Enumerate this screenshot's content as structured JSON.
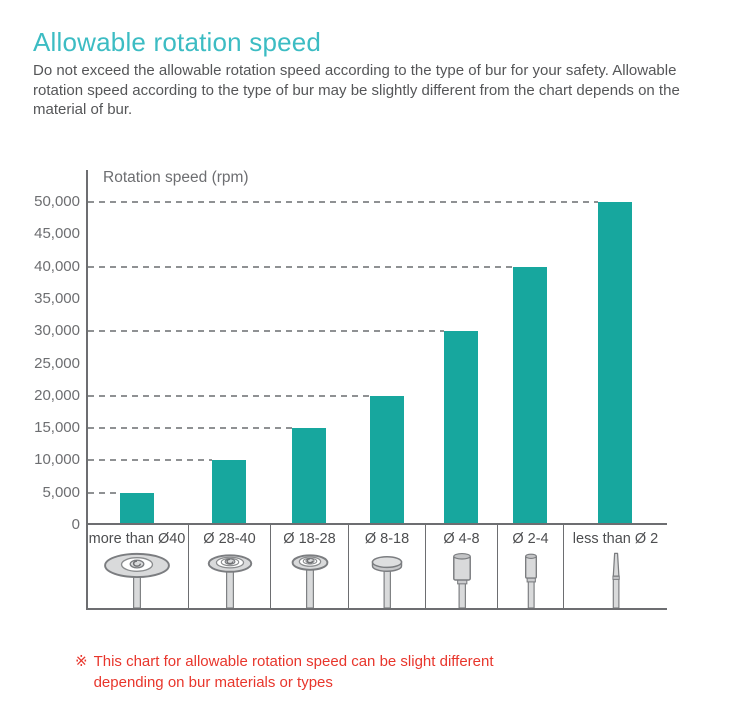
{
  "header": {
    "title": "Allowable rotation speed",
    "intro": "Do not exceed the allowable rotation speed according to the type of bur for your safety. Allowable rotation speed according to the type of bur may be slightly different from the chart depends on the material of bur."
  },
  "chart_data": {
    "type": "bar",
    "title": "",
    "xlabel": "",
    "ylabel": "Rotation speed (rpm)",
    "categories": [
      "more than Ø40",
      "Ø 28-40",
      "Ø 18-28",
      "Ø 8-18",
      "Ø 4-8",
      "Ø 2-4",
      "less than Ø 2"
    ],
    "values": [
      5000,
      10000,
      15000,
      20000,
      30000,
      40000,
      50000
    ],
    "ylim": [
      0,
      50000
    ],
    "ytick_step": 5000,
    "ytick_labels": [
      "0",
      "5,000",
      "10,000",
      "15,000",
      "20,000",
      "25,000",
      "30,000",
      "35,000",
      "40,000",
      "45,000",
      "50,000"
    ],
    "grid": "dashed leader line from y-axis to each bar top",
    "legend_position": "none",
    "bar_color": "#17a79e",
    "category_icons": [
      "large-disc-bur-icon",
      "medium-disc-bur-icon",
      "small-disc-bur-icon",
      "button-disc-bur-icon",
      "cylinder-bur-icon",
      "small-cylinder-bur-icon",
      "needle-bur-icon"
    ]
  },
  "footnote": {
    "marker": "※",
    "text": "This chart for allowable rotation speed can be slight different depending on bur materials or types"
  },
  "colors": {
    "title": "#3cbcc3",
    "bar": "#17a79e",
    "body_text": "#555658",
    "axis": "#6d6e71",
    "dash": "#8f9193",
    "footnote": "#e8362c"
  }
}
